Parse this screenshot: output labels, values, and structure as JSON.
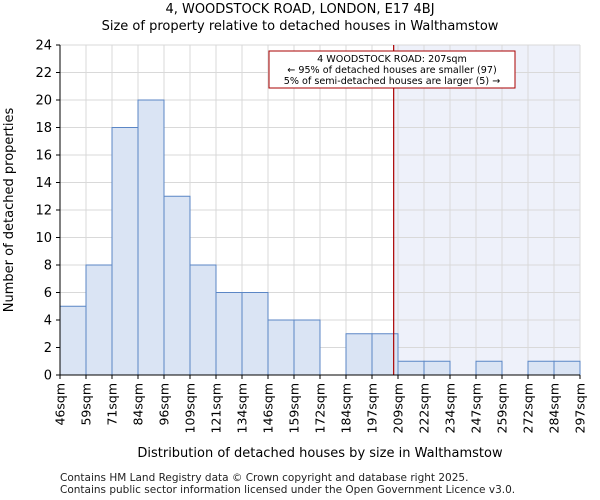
{
  "header": {
    "title": "4, WOODSTOCK ROAD, LONDON, E17 4BJ",
    "subtitle": "Size of property relative to detached houses in Walthamstow"
  },
  "footer": {
    "line1": "Contains HM Land Registry data © Crown copyright and database right 2025.",
    "line2": "Contains public sector information licensed under the Open Government Licence v3.0."
  },
  "colors": {
    "bar_fill": "#dae4f4",
    "bar_stroke": "#5b86c5",
    "highlight_fill": "#eef1fa",
    "marker_line": "#aa0000",
    "grid": "#d9d9d9"
  },
  "chart_data": {
    "type": "bar",
    "title": "4, WOODSTOCK ROAD, LONDON, E17 4BJ",
    "subtitle": "Size of property relative to detached houses in Walthamstow",
    "xlabel": "Distribution of detached houses by size in Walthamstow",
    "ylabel": "Number of detached properties",
    "ylim": [
      0,
      24
    ],
    "yticks": [
      0,
      2,
      4,
      6,
      8,
      10,
      12,
      14,
      16,
      18,
      20,
      22,
      24
    ],
    "bin_edges": [
      "46sqm",
      "59sqm",
      "71sqm",
      "84sqm",
      "96sqm",
      "109sqm",
      "121sqm",
      "134sqm",
      "146sqm",
      "159sqm",
      "172sqm",
      "184sqm",
      "197sqm",
      "209sqm",
      "222sqm",
      "234sqm",
      "247sqm",
      "259sqm",
      "272sqm",
      "284sqm",
      "297sqm"
    ],
    "values": [
      5,
      8,
      18,
      20,
      13,
      8,
      6,
      6,
      4,
      4,
      0,
      3,
      3,
      1,
      1,
      0,
      1,
      0,
      1,
      1
    ],
    "grid": true,
    "marker": {
      "value_sqm": 207,
      "label_lines": [
        "4 WOODSTOCK ROAD: 207sqm",
        "← 95% of detached houses are smaller (97)",
        "5% of semi-detached houses are larger (5) →"
      ]
    }
  }
}
